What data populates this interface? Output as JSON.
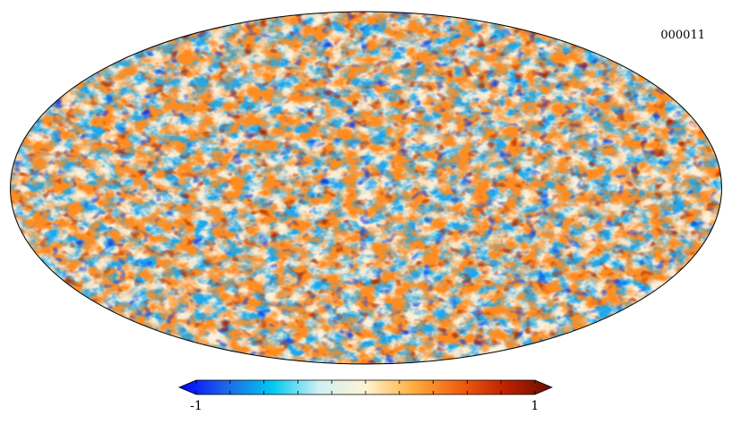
{
  "map": {
    "projection": "mollweide",
    "id_label": "000011",
    "field": "random-temperature-anisotropy",
    "colormap": {
      "name": "planck",
      "stops": [
        "#0000ff",
        "#1e66e6",
        "#00c8f0",
        "#d0f0f4",
        "#fff4d2",
        "#ffb040",
        "#f26010",
        "#c02000",
        "#641000"
      ]
    },
    "scale": {
      "min": -1,
      "max": 1,
      "min_label": "-1",
      "max_label": "1",
      "ticks": [
        -1,
        -0.8,
        -0.6,
        -0.4,
        -0.2,
        0,
        0.2,
        0.4,
        0.6,
        0.8,
        1
      ]
    }
  }
}
